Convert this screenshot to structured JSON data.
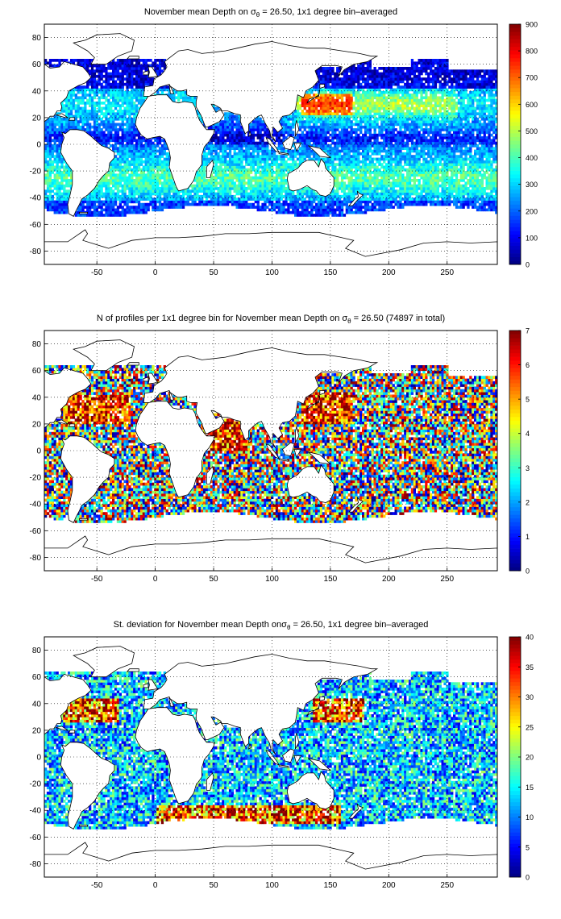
{
  "chart_data": [
    {
      "type": "heatmap",
      "title": "November mean Depth on σθ = 26.50, 1x1 degree bin–averaged",
      "title_parts": {
        "pre": "November mean Depth on ",
        "sym": "σ",
        "sub": "θ",
        "post": " = 26.50, 1x1 degree bin–averaged"
      },
      "xlim": [
        -95,
        293
      ],
      "ylim": [
        -90,
        90
      ],
      "xticks": [
        -50,
        0,
        50,
        100,
        150,
        200,
        250
      ],
      "yticks": [
        -80,
        -60,
        -40,
        -20,
        0,
        20,
        40,
        60,
        80
      ],
      "grid": "dotted",
      "colorbar": {
        "range": [
          0,
          900
        ],
        "ticks": [
          0,
          100,
          200,
          300,
          400,
          500,
          600,
          700,
          800,
          900
        ],
        "colormap": "jet"
      },
      "field": "depth",
      "values_note": ""
    },
    {
      "type": "heatmap",
      "title": "N of profiles per 1x1 degree bin for November mean Depth on σθ = 26.50 (74897 in total)",
      "title_parts": {
        "pre": "N of profiles per 1x1 degree bin for November mean Depth on ",
        "sym": "σ",
        "sub": "θ",
        "post": " = 26.50 (74897 in total)"
      },
      "xlim": [
        -95,
        293
      ],
      "ylim": [
        -90,
        90
      ],
      "xticks": [
        -50,
        0,
        50,
        100,
        150,
        200,
        250
      ],
      "yticks": [
        -80,
        -60,
        -40,
        -20,
        0,
        20,
        40,
        60,
        80
      ],
      "grid": "dotted",
      "colorbar": {
        "range": [
          0,
          7
        ],
        "ticks": [
          0,
          1,
          2,
          3,
          4,
          5,
          6,
          7
        ],
        "colormap": "jet"
      },
      "field": "count",
      "values_note": ""
    },
    {
      "type": "heatmap",
      "title": "St. deviation for November mean Depth onσθ = 26.50, 1x1 degree bin–averaged",
      "title_parts": {
        "pre": "St. deviation for November mean Depth on",
        "sym": "σ",
        "sub": "θ",
        "post": " = 26.50, 1x1 degree bin–averaged"
      },
      "xlim": [
        -95,
        293
      ],
      "ylim": [
        -90,
        90
      ],
      "xticks": [
        -50,
        0,
        50,
        100,
        150,
        200,
        250
      ],
      "yticks": [
        -80,
        -60,
        -40,
        -20,
        0,
        20,
        40,
        60,
        80
      ],
      "grid": "dotted",
      "colorbar": {
        "range": [
          0,
          40
        ],
        "ticks": [
          0,
          5,
          10,
          15,
          20,
          25,
          30,
          35,
          40
        ],
        "colormap": "jet"
      },
      "field": "std",
      "values_note": ""
    }
  ]
}
